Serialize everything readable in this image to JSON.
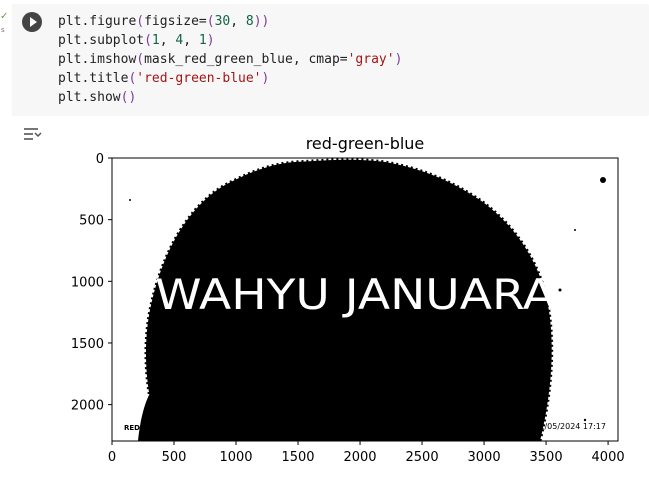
{
  "cell": {
    "code_lines": [
      [
        {
          "t": "plt.figure",
          "c": "fn"
        },
        {
          "t": "(",
          "c": "paren"
        },
        {
          "t": "figsize=",
          "c": "fn"
        },
        {
          "t": "(",
          "c": "paren"
        },
        {
          "t": "30",
          "c": "num"
        },
        {
          "t": ", ",
          "c": "fn"
        },
        {
          "t": "8",
          "c": "num"
        },
        {
          "t": "))",
          "c": "paren"
        }
      ],
      [
        {
          "t": "plt.subplot",
          "c": "fn"
        },
        {
          "t": "(",
          "c": "paren"
        },
        {
          "t": "1",
          "c": "num"
        },
        {
          "t": ", ",
          "c": "fn"
        },
        {
          "t": "4",
          "c": "num"
        },
        {
          "t": ", ",
          "c": "fn"
        },
        {
          "t": "1",
          "c": "num"
        },
        {
          "t": ")",
          "c": "paren"
        }
      ],
      [
        {
          "t": "plt.imshow",
          "c": "fn"
        },
        {
          "t": "(",
          "c": "paren"
        },
        {
          "t": "mask_red_green_blue, cmap=",
          "c": "fn"
        },
        {
          "t": "'gray'",
          "c": "str"
        },
        {
          "t": ")",
          "c": "paren"
        }
      ],
      [
        {
          "t": "plt.title",
          "c": "fn"
        },
        {
          "t": "(",
          "c": "paren"
        },
        {
          "t": "'red-green-blue'",
          "c": "str"
        },
        {
          "t": ")",
          "c": "paren"
        }
      ],
      [
        {
          "t": "plt.show",
          "c": "fn"
        },
        {
          "t": "()",
          "c": "paren"
        }
      ]
    ]
  },
  "chart_data": {
    "type": "image",
    "title": "red-green-blue",
    "x_ticks": [
      0,
      500,
      1000,
      1500,
      2000,
      2500,
      3000,
      3500,
      4000
    ],
    "y_ticks": [
      0,
      500,
      1000,
      1500,
      2000
    ],
    "xlim": [
      0,
      4080
    ],
    "ylim": [
      0,
      2295
    ],
    "image_text": "WAHYU JANUARA",
    "watermark_left": "REDMI NOTE | WAHYU",
    "watermark_right": "11/05/2024 17:17"
  }
}
